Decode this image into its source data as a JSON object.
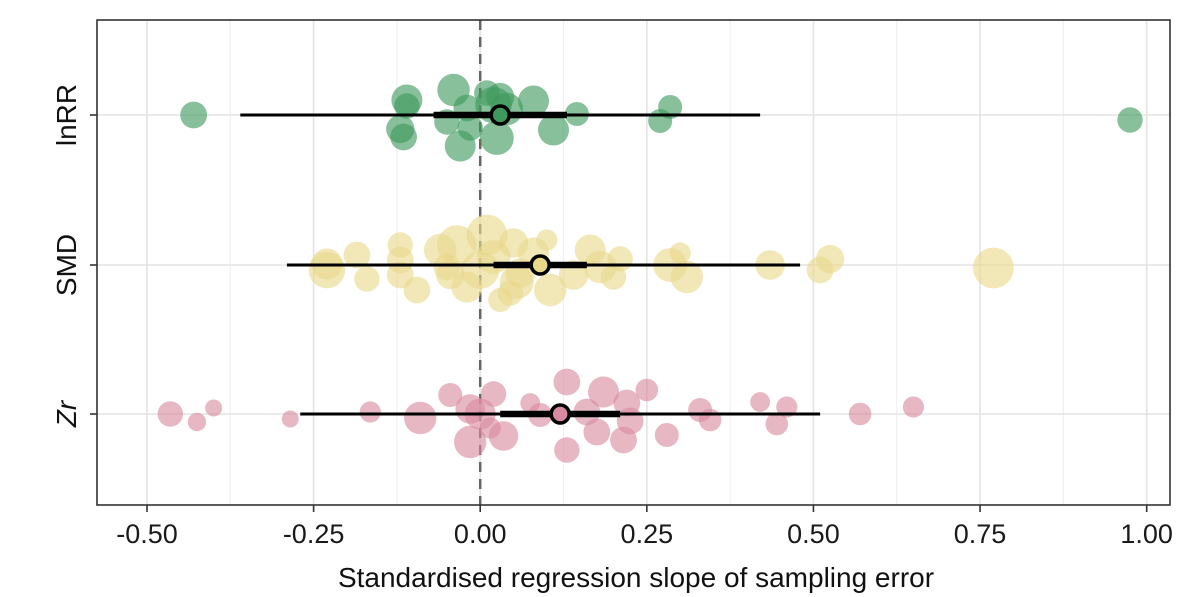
{
  "chart_data": {
    "type": "scatter",
    "title": "",
    "xlabel": "Standardised regression slope of sampling error",
    "ylabel": "",
    "xlim": [
      -0.575,
      1.035
    ],
    "xticks": [
      -0.5,
      -0.25,
      0.0,
      0.25,
      0.5,
      0.75,
      1.0
    ],
    "xtick_labels": [
      "-0.50",
      "-0.25",
      "0.00",
      "0.25",
      "0.50",
      "0.75",
      "1.00"
    ],
    "reference_line_x": 0.0,
    "grid": true,
    "categories": [
      "lnRR",
      "SMD",
      "Zr"
    ],
    "category_italic": [
      false,
      false,
      true
    ],
    "series": [
      {
        "name": "lnRR",
        "color": "#3d9a5c",
        "estimate": 0.03,
        "ci": [
          -0.07,
          0.13
        ],
        "pi": [
          -0.36,
          0.42
        ],
        "points": [
          {
            "x": -0.43,
            "dy": 0.0,
            "w": 1.2
          },
          {
            "x": -0.04,
            "dy": 0.25,
            "w": 1.6
          },
          {
            "x": 0.01,
            "dy": 0.22,
            "w": 1.1
          },
          {
            "x": 0.03,
            "dy": 0.18,
            "w": 1.3
          },
          {
            "x": -0.11,
            "dy": 0.15,
            "w": 1.5
          },
          {
            "x": 0.08,
            "dy": 0.14,
            "w": 1.5
          },
          {
            "x": -0.11,
            "dy": 0.09,
            "w": 1.1
          },
          {
            "x": -0.02,
            "dy": 0.07,
            "w": 1.2
          },
          {
            "x": 0.02,
            "dy": 0.1,
            "w": 1.9
          },
          {
            "x": 0.04,
            "dy": 0.06,
            "w": 1.6
          },
          {
            "x": 0.145,
            "dy": 0.01,
            "w": 1.0
          },
          {
            "x": 0.285,
            "dy": 0.08,
            "w": 1.0
          },
          {
            "x": 0.27,
            "dy": -0.06,
            "w": 1.0
          },
          {
            "x": -0.05,
            "dy": -0.07,
            "w": 1.1
          },
          {
            "x": -0.015,
            "dy": -0.13,
            "w": 1.1
          },
          {
            "x": -0.12,
            "dy": -0.14,
            "w": 1.3
          },
          {
            "x": 0.11,
            "dy": -0.15,
            "w": 1.5
          },
          {
            "x": -0.115,
            "dy": -0.22,
            "w": 1.2
          },
          {
            "x": 0.025,
            "dy": -0.23,
            "w": 1.7
          },
          {
            "x": -0.03,
            "dy": -0.31,
            "w": 1.5
          },
          {
            "x": 0.975,
            "dy": -0.05,
            "w": 1.1
          }
        ]
      },
      {
        "name": "SMD",
        "color": "#e8d98a",
        "estimate": 0.09,
        "ci": [
          0.02,
          0.16
        ],
        "pi": [
          -0.29,
          0.48
        ],
        "points": [
          {
            "x": -0.23,
            "dy": -0.05,
            "w": 1.9
          },
          {
            "x": -0.23,
            "dy": 0.01,
            "w": 1.5
          },
          {
            "x": -0.185,
            "dy": 0.1,
            "w": 1.2
          },
          {
            "x": -0.17,
            "dy": -0.14,
            "w": 1.1
          },
          {
            "x": -0.12,
            "dy": 0.2,
            "w": 1.1
          },
          {
            "x": -0.12,
            "dy": 0.05,
            "w": 1.2
          },
          {
            "x": -0.12,
            "dy": -0.1,
            "w": 1.2
          },
          {
            "x": -0.095,
            "dy": -0.25,
            "w": 1.2
          },
          {
            "x": -0.06,
            "dy": 0.15,
            "w": 1.6
          },
          {
            "x": -0.05,
            "dy": -0.02,
            "w": 1.2
          },
          {
            "x": -0.045,
            "dy": -0.1,
            "w": 1.3
          },
          {
            "x": -0.035,
            "dy": 0.2,
            "w": 2.1
          },
          {
            "x": -0.02,
            "dy": -0.22,
            "w": 1.5
          },
          {
            "x": 0.0,
            "dy": -0.05,
            "w": 2.0
          },
          {
            "x": 0.01,
            "dy": 0.3,
            "w": 2.2
          },
          {
            "x": 0.02,
            "dy": 0.08,
            "w": 1.7
          },
          {
            "x": 0.05,
            "dy": 0.22,
            "w": 1.4
          },
          {
            "x": 0.055,
            "dy": -0.17,
            "w": 1.7
          },
          {
            "x": 0.045,
            "dy": -0.28,
            "w": 1.1
          },
          {
            "x": 0.06,
            "dy": -0.08,
            "w": 1.4
          },
          {
            "x": 0.08,
            "dy": 0.12,
            "w": 1.5
          },
          {
            "x": 0.1,
            "dy": 0.25,
            "w": 0.8
          },
          {
            "x": 0.105,
            "dy": -0.25,
            "w": 1.6
          },
          {
            "x": 0.14,
            "dy": -0.1,
            "w": 1.4
          },
          {
            "x": 0.165,
            "dy": 0.15,
            "w": 1.5
          },
          {
            "x": 0.18,
            "dy": -0.02,
            "w": 1.6
          },
          {
            "x": 0.2,
            "dy": -0.12,
            "w": 1.1
          },
          {
            "x": 0.21,
            "dy": 0.06,
            "w": 1.1
          },
          {
            "x": 0.03,
            "dy": -0.35,
            "w": 1.0
          },
          {
            "x": 0.285,
            "dy": 0.0,
            "w": 1.7
          },
          {
            "x": 0.3,
            "dy": 0.12,
            "w": 0.8
          },
          {
            "x": 0.31,
            "dy": -0.12,
            "w": 1.6
          },
          {
            "x": 0.435,
            "dy": 0.0,
            "w": 1.4
          },
          {
            "x": 0.51,
            "dy": -0.05,
            "w": 1.2
          },
          {
            "x": 0.525,
            "dy": 0.06,
            "w": 1.3
          },
          {
            "x": 0.77,
            "dy": -0.03,
            "w": 2.2
          }
        ]
      },
      {
        "name": "Zr",
        "color": "#d98aa0",
        "estimate": 0.12,
        "ci": [
          0.03,
          0.21
        ],
        "pi": [
          -0.27,
          0.51
        ],
        "points": [
          {
            "x": -0.465,
            "dy": 0.0,
            "w": 1.1
          },
          {
            "x": -0.4,
            "dy": 0.06,
            "w": 0.5
          },
          {
            "x": -0.425,
            "dy": -0.08,
            "w": 0.6
          },
          {
            "x": -0.285,
            "dy": -0.05,
            "w": 0.5
          },
          {
            "x": -0.165,
            "dy": 0.02,
            "w": 0.8
          },
          {
            "x": -0.09,
            "dy": -0.04,
            "w": 1.6
          },
          {
            "x": -0.045,
            "dy": 0.19,
            "w": 1.0
          },
          {
            "x": -0.015,
            "dy": 0.05,
            "w": 1.4
          },
          {
            "x": 0.0,
            "dy": 0.0,
            "w": 1.5
          },
          {
            "x": 0.02,
            "dy": 0.2,
            "w": 1.1
          },
          {
            "x": 0.015,
            "dy": -0.14,
            "w": 0.8
          },
          {
            "x": -0.015,
            "dy": -0.28,
            "w": 1.6
          },
          {
            "x": 0.035,
            "dy": -0.22,
            "w": 1.4
          },
          {
            "x": 0.075,
            "dy": 0.11,
            "w": 0.7
          },
          {
            "x": 0.09,
            "dy": -0.01,
            "w": 1.0
          },
          {
            "x": 0.13,
            "dy": 0.32,
            "w": 1.2
          },
          {
            "x": 0.16,
            "dy": 0.02,
            "w": 1.2
          },
          {
            "x": 0.185,
            "dy": 0.22,
            "w": 1.5
          },
          {
            "x": 0.175,
            "dy": -0.18,
            "w": 1.2
          },
          {
            "x": 0.22,
            "dy": 0.11,
            "w": 1.2
          },
          {
            "x": 0.225,
            "dy": -0.07,
            "w": 1.2
          },
          {
            "x": 0.215,
            "dy": -0.26,
            "w": 1.2
          },
          {
            "x": 0.25,
            "dy": 0.24,
            "w": 0.9
          },
          {
            "x": 0.28,
            "dy": -0.21,
            "w": 1.0
          },
          {
            "x": 0.33,
            "dy": 0.04,
            "w": 1.0
          },
          {
            "x": 0.345,
            "dy": -0.06,
            "w": 0.9
          },
          {
            "x": 0.42,
            "dy": 0.12,
            "w": 0.7
          },
          {
            "x": 0.46,
            "dy": 0.07,
            "w": 0.8
          },
          {
            "x": 0.445,
            "dy": -0.1,
            "w": 0.9
          },
          {
            "x": 0.57,
            "dy": 0.0,
            "w": 0.9
          },
          {
            "x": 0.65,
            "dy": 0.07,
            "w": 0.8
          },
          {
            "x": 0.13,
            "dy": -0.36,
            "w": 1.1
          }
        ]
      }
    ]
  }
}
